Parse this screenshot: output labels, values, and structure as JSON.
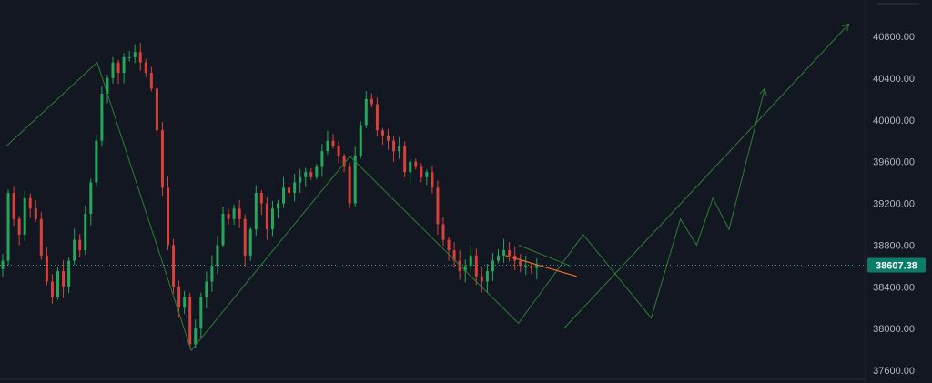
{
  "chart_data": {
    "type": "candlestick",
    "ylim": [
      37560,
      41080
    ],
    "y_ticks": [
      "40800.00",
      "40400.00",
      "40000.00",
      "39600.00",
      "39200.00",
      "38800.00",
      "38400.00",
      "38000.00",
      "37600.00"
    ],
    "y_tick_values": [
      40800,
      40400,
      40000,
      39600,
      39200,
      38800,
      38400,
      38000,
      37600
    ],
    "last_price": 38607.38,
    "last_price_label": "38607.38",
    "up_color": "#26a65b",
    "down_color": "#d8403a",
    "closes": [
      38650,
      39300,
      39050,
      38900,
      39250,
      39150,
      39050,
      38700,
      38450,
      38300,
      38550,
      38400,
      38650,
      38850,
      38750,
      39100,
      39400,
      39800,
      40250,
      40400,
      40550,
      40450,
      40600,
      40600,
      40650,
      40550,
      40450,
      40300,
      39900,
      39350,
      38800,
      38400,
      38200,
      38300,
      37850,
      38000,
      38300,
      38450,
      38600,
      38800,
      39100,
      39050,
      39150,
      39050,
      38700,
      38950,
      39300,
      39200,
      38950,
      39150,
      39200,
      39350,
      39300,
      39400,
      39450,
      39500,
      39450,
      39550,
      39700,
      39800,
      39750,
      39650,
      39550,
      39200,
      39650,
      39950,
      40200,
      40150,
      39900,
      39850,
      39800,
      39700,
      39750,
      39500,
      39600,
      39550,
      39450,
      39500,
      39350,
      39000,
      38850,
      38750,
      38650,
      38550,
      38600,
      38700,
      38500,
      38450,
      38550,
      38650,
      38700,
      38750,
      38700,
      38650,
      38600,
      38600,
      38580,
      38610
    ]
  },
  "projection": {
    "color": "#2e7d32",
    "zigzag": [
      [
        2,
        39750
      ],
      [
        30,
        40550
      ],
      [
        59,
        37790
      ],
      [
        108,
        39650
      ],
      [
        160,
        38050
      ],
      [
        180,
        38900
      ],
      [
        201,
        38100
      ],
      [
        210,
        39050
      ],
      [
        215,
        38800
      ],
      [
        220,
        39250
      ],
      [
        225,
        38950
      ],
      [
        236,
        40300
      ]
    ],
    "big_target": [
      [
        174,
        38000
      ],
      [
        262,
        40920
      ]
    ],
    "channel": [
      [
        160,
        38800
      ],
      [
        176,
        38600
      ]
    ],
    "trendline": [
      [
        156,
        38700
      ],
      [
        178,
        38500
      ]
    ],
    "trendline_color": "#ef6c2b"
  }
}
